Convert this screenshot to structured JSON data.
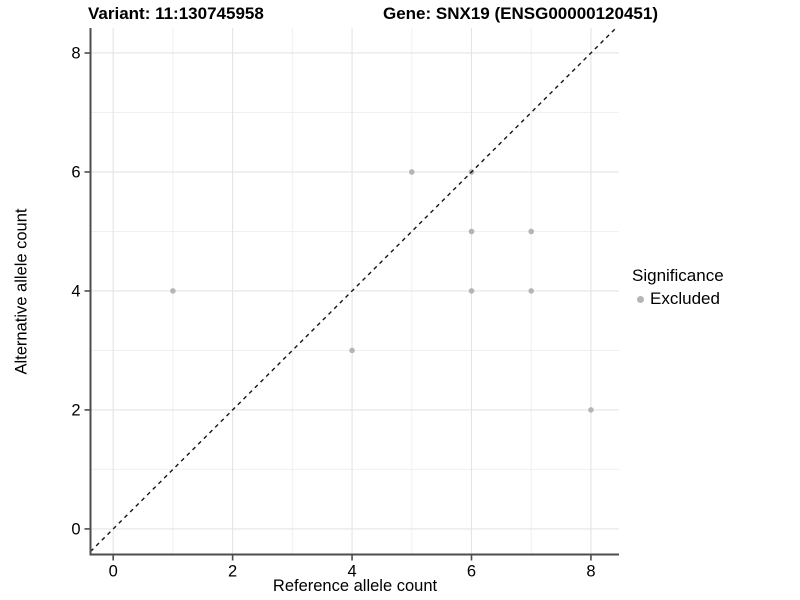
{
  "header": {
    "title_left": "Variant: 11:130745958",
    "title_right": "Gene: SNX19 (ENSG00000120451)"
  },
  "chart_data": {
    "type": "scatter",
    "title_left": "Variant: 11:130745958",
    "title_right": "Gene: SNX19 (ENSG00000120451)",
    "xlabel": "Reference allele count",
    "ylabel": "Alternative allele count",
    "xlim": [
      -0.38,
      8.47
    ],
    "ylim": [
      -0.43,
      8.42
    ],
    "x_ticks": [
      0,
      2,
      4,
      6,
      8
    ],
    "y_ticks": [
      0,
      2,
      4,
      6,
      8
    ],
    "x_minor_ticks": [
      1,
      3,
      5,
      7
    ],
    "y_minor_ticks": [
      1,
      3,
      5,
      7
    ],
    "grid": true,
    "points": [
      {
        "x": 1,
        "y": 4
      },
      {
        "x": 4,
        "y": 3
      },
      {
        "x": 5,
        "y": 6
      },
      {
        "x": 6,
        "y": 6
      },
      {
        "x": 6,
        "y": 5
      },
      {
        "x": 6,
        "y": 4
      },
      {
        "x": 7,
        "y": 5
      },
      {
        "x": 7,
        "y": 4
      },
      {
        "x": 8,
        "y": 2
      }
    ],
    "identity_line": {
      "equation": "y = x",
      "style": "dashed",
      "color": "#141414"
    },
    "colors": {
      "point": "#b5b5b5",
      "grid_major": "#e4e4e4",
      "grid_minor": "#f0f0f0",
      "axis_line": "#4d4d4d",
      "tick_label": "#000000"
    },
    "legend": {
      "position": "right",
      "title": "Significance",
      "items": [
        {
          "label": "Excluded",
          "color": "#b5b5b5",
          "marker": "dot"
        }
      ]
    }
  }
}
